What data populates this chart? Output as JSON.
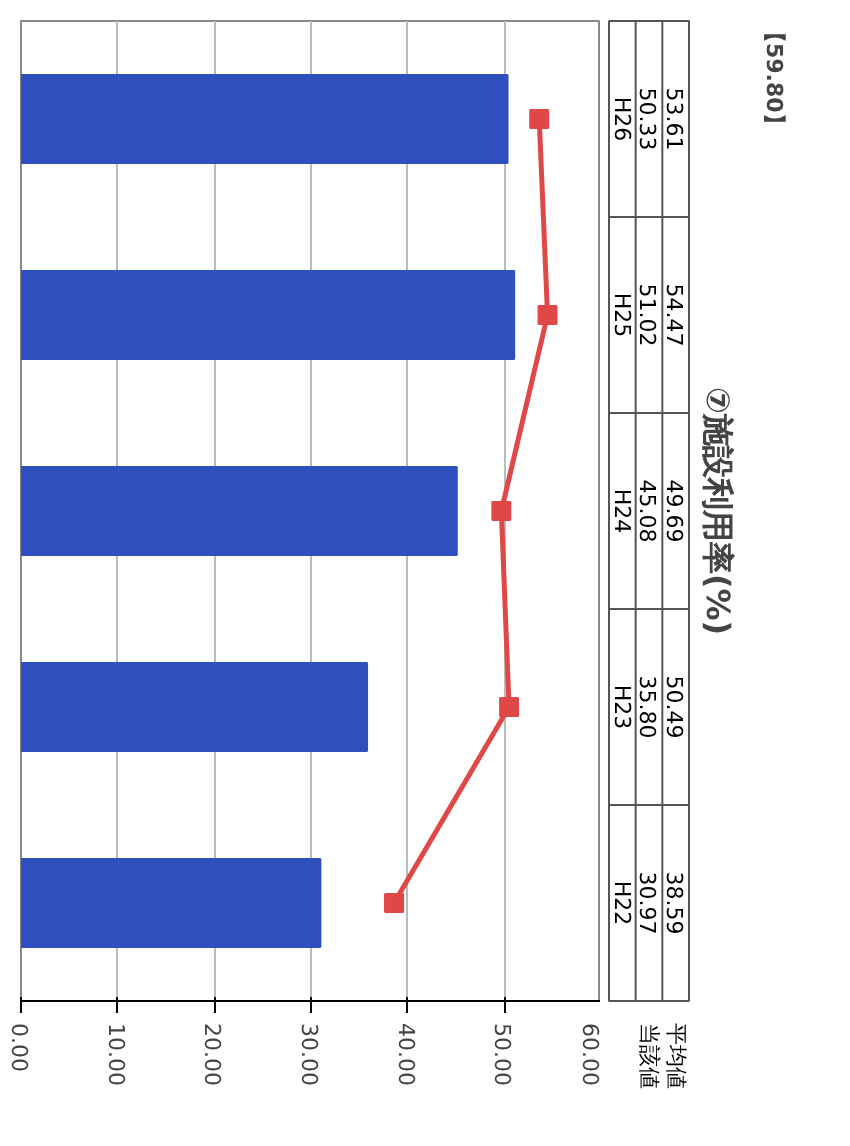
{
  "chart_data": {
    "type": "bar",
    "orientation": "horizontal",
    "title": "⑦施設利用率(%)",
    "annotations": [
      "【59.80】"
    ],
    "categories": [
      "H26",
      "H25",
      "H24",
      "H23",
      "H22"
    ],
    "series": [
      {
        "name": "当該値",
        "color": "#3050c0",
        "values": [
          50.33,
          51.02,
          45.08,
          35.8,
          30.97
        ],
        "value_labels": [
          "50.33",
          "51.02",
          "45.08",
          "35.80",
          "30.97"
        ]
      },
      {
        "name": "平均値",
        "type": "line",
        "color": "#e04848",
        "marker": "square",
        "values": [
          53.61,
          54.47,
          49.69,
          50.49,
          38.59
        ],
        "value_labels": [
          "53.61",
          "54.47",
          "49.69",
          "50.49",
          "38.59"
        ]
      }
    ],
    "xlim": [
      0,
      60
    ],
    "xticks": [
      {
        "value": 0,
        "label": "0.00"
      },
      {
        "value": 10,
        "label": "10.00"
      },
      {
        "value": 20,
        "label": "20.00"
      },
      {
        "value": 30,
        "label": "30.00"
      },
      {
        "value": 40,
        "label": "40.00"
      },
      {
        "value": 50,
        "label": "50.00"
      },
      {
        "value": 60,
        "label": "60.00"
      }
    ],
    "grid": "x"
  }
}
